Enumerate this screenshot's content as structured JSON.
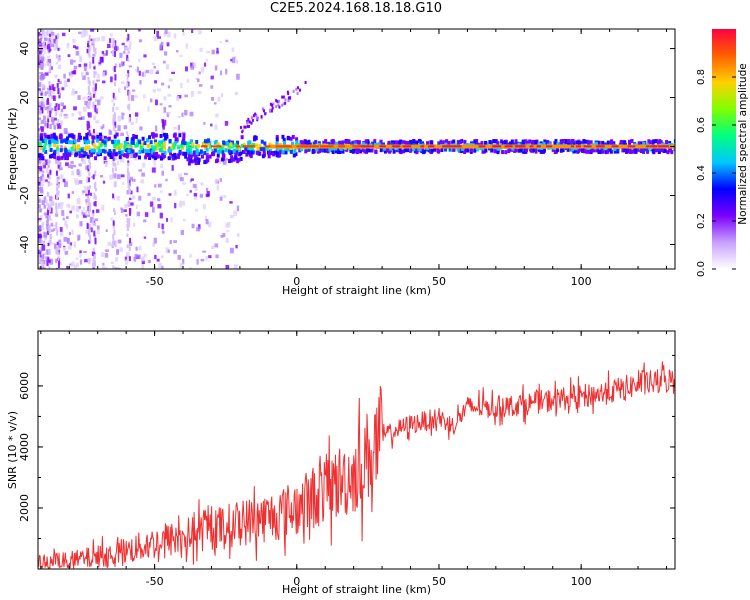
{
  "title": "C2E5.2024.168.18.18.G10",
  "colors": {
    "line": "#f03030",
    "stripe_core": "#e02040",
    "axis": "#000000"
  },
  "chart_data": [
    {
      "type": "heatmap",
      "panel": "spectrogram",
      "xlabel": "Height of straight line (km)",
      "ylabel": "Frequency (Hz)",
      "xlim": [
        -91,
        133
      ],
      "ylim": [
        -50,
        48
      ],
      "xticks": [
        -50,
        0,
        50,
        100
      ],
      "yticks": [
        -40,
        -20,
        0,
        20,
        40
      ],
      "colorbar": {
        "label": "Normalized spectral amplitude",
        "range": [
          0,
          1
        ],
        "ticks": [
          "0.0",
          "0.2",
          "0.4",
          "0.6",
          "0.8"
        ],
        "colormap": [
          "#ffffff",
          "#c8a0ff",
          "#7a00ff",
          "#0000ff",
          "#00c8ff",
          "#00ff80",
          "#80ff00",
          "#ffd000",
          "#ff6000",
          "#ff0040"
        ]
      },
      "features": [
        {
          "name": "carrier line",
          "freq_hz": 0,
          "x_from": -91,
          "x_to": 133
        },
        {
          "name": "upward branch",
          "freq_from_hz": 8,
          "freq_to_hz": 26,
          "x_from": -20,
          "x_to": 3
        }
      ]
    },
    {
      "type": "line",
      "panel": "snr",
      "xlabel": "Height of straight line (km)",
      "ylabel": "SNR (10 * v/v)",
      "xlim": [
        -91,
        133
      ],
      "ylim": [
        0,
        7800
      ],
      "xticks": [
        -50,
        0,
        50,
        100
      ],
      "yticks": [
        2000,
        4000,
        6000
      ],
      "series": [
        {
          "x": [
            -91,
            -80,
            -70,
            -60,
            -50,
            -40,
            -30,
            -20,
            -10,
            0,
            10,
            20,
            30,
            40,
            50,
            55,
            60,
            70,
            80,
            90,
            100,
            110,
            120,
            133
          ],
          "y": [
            150,
            250,
            400,
            600,
            850,
            1050,
            1300,
            1500,
            1700,
            2000,
            2600,
            3100,
            4350,
            4750,
            4950,
            4700,
            5300,
            5300,
            5400,
            5550,
            5650,
            5800,
            6050,
            6200
          ]
        }
      ]
    }
  ]
}
